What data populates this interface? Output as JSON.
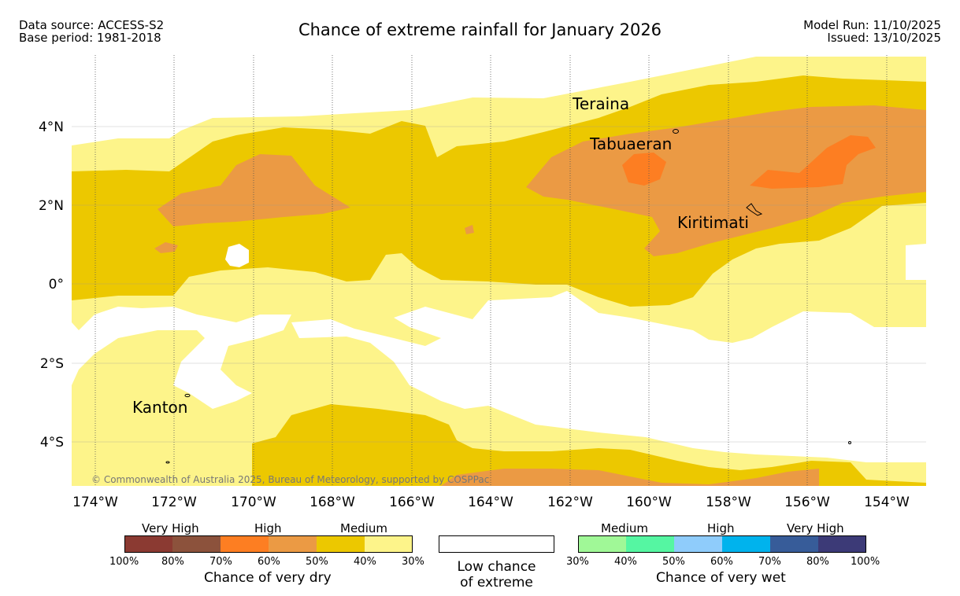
{
  "header": {
    "data_source": "Data source: ACCESS-S2",
    "base_period": "Base period: 1981-2018",
    "title": "Chance of extreme rainfall for January 2026",
    "model_run": "Model Run: 11/10/2025",
    "issued": "Issued: 13/10/2025"
  },
  "map": {
    "lon_labels": [
      "174°W",
      "172°W",
      "170°W",
      "168°W",
      "166°W",
      "164°W",
      "162°W",
      "160°W",
      "158°W",
      "156°W",
      "154°W"
    ],
    "lat_labels": [
      "4°N",
      "2°N",
      "0°",
      "2°S",
      "4°S"
    ],
    "places": {
      "teraina": "Teraina",
      "tabuaeran": "Tabuaeran",
      "kiritimati": "Kiritimati",
      "kanton": "Kanton"
    },
    "copyright": "© Commonwealth of Australia 2025, Bureau of Meteorology, supported by COSPPac"
  },
  "colors": {
    "dry_40_30": "#fdf48a",
    "dry_50_40": "#ecc800",
    "dry_60_50": "#eb9a44",
    "dry_70_60": "#fd7e22",
    "dry_80_70": "#8c523c",
    "dry_100_80": "#8b3a32",
    "wet_30_40": "#a0f897",
    "wet_40_50": "#55f6a2",
    "wet_50_60": "#8fccfb",
    "wet_60_70": "#00b3ed",
    "wet_70_80": "#375c99",
    "wet_80_100": "#3c3a77"
  },
  "legend": {
    "dry": {
      "categories": [
        "Very High",
        "High",
        "Medium"
      ],
      "ticks": [
        "100%",
        "80%",
        "70%",
        "60%",
        "50%",
        "40%",
        "30%"
      ],
      "title": "Chance of very dry"
    },
    "low": {
      "line1": "Low chance",
      "line2": "of extreme"
    },
    "wet": {
      "categories": [
        "Medium",
        "High",
        "Very High"
      ],
      "ticks": [
        "30%",
        "40%",
        "50%",
        "60%",
        "70%",
        "80%",
        "100%"
      ],
      "title": "Chance of very wet"
    }
  }
}
